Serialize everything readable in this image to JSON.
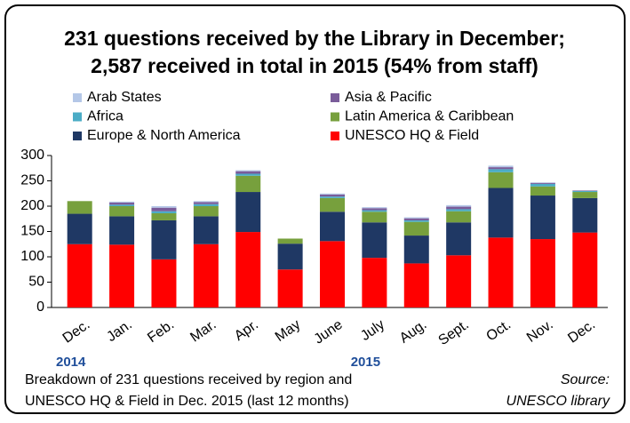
{
  "chart_data": {
    "type": "stacked_bar",
    "title_lines": [
      "231 questions received by the Library in December;",
      "2,587 received in total in 2015 (54% from staff)"
    ],
    "categories": [
      "Dec.",
      "Jan.",
      "Feb.",
      "Mar.",
      "Apr.",
      "May",
      "June",
      "July",
      "Aug.",
      "Sept.",
      "Oct.",
      "Nov.",
      "Dec."
    ],
    "year_labels": [
      "2014",
      "2015"
    ],
    "series": [
      {
        "name": "UNESCO HQ & Field",
        "color": "#ff0000",
        "values": [
          125,
          124,
          95,
          125,
          149,
          75,
          131,
          98,
          87,
          103,
          138,
          135,
          148
        ]
      },
      {
        "name": "Europe & North America",
        "color": "#1f3864",
        "values": [
          60,
          56,
          77,
          55,
          79,
          51,
          58,
          70,
          55,
          65,
          98,
          86,
          68
        ]
      },
      {
        "name": "Latin America & Caribbean",
        "color": "#77a03d",
        "values": [
          25,
          20,
          14,
          20,
          32,
          10,
          27,
          21,
          27,
          22,
          31,
          18,
          12
        ]
      },
      {
        "name": "Africa",
        "color": "#4bacc6",
        "values": [
          0,
          3,
          4,
          4,
          4,
          0,
          3,
          3,
          3,
          4,
          6,
          5,
          2
        ]
      },
      {
        "name": "Asia & Pacific",
        "color": "#7a5c9a",
        "values": [
          0,
          4,
          7,
          4,
          5,
          0,
          4,
          4,
          4,
          5,
          4,
          2,
          1
        ]
      },
      {
        "name": "Arab States",
        "color": "#b4c7e7",
        "values": [
          0,
          2,
          3,
          2,
          2,
          0,
          2,
          2,
          2,
          3,
          3,
          1,
          0
        ]
      }
    ],
    "ylim": [
      0,
      300
    ],
    "yticks": [
      0,
      50,
      100,
      150,
      200,
      250,
      300
    ],
    "grid": false,
    "footnote_lines": [
      "Breakdown of 231 questions received by region and",
      "UNESCO HQ & Field in Dec. 2015 (last 12 months)"
    ],
    "source_lines": [
      "Source:",
      "UNESCO library"
    ]
  }
}
